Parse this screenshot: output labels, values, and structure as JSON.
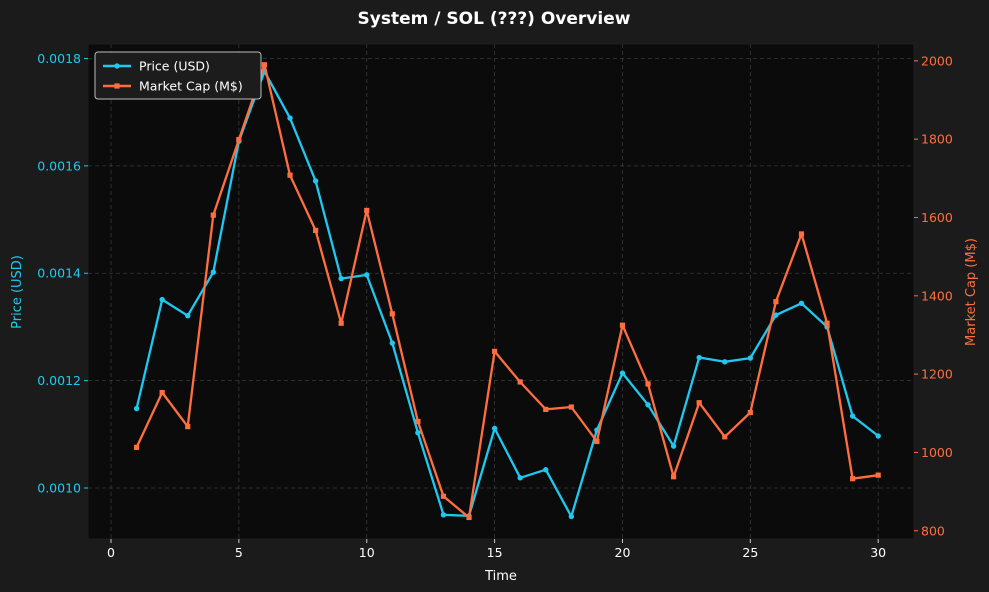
{
  "chart_data": {
    "type": "line",
    "title": "System / SOL (???) Overview",
    "xlabel": "Time",
    "ylabel_left": "Price (USD)",
    "ylabel_right": "Market Cap (M$)",
    "xlim": [
      -0.9,
      31.4
    ],
    "ylim_left": [
      0.000905,
      0.001827
    ],
    "ylim_right": [
      779,
      2043
    ],
    "x_ticks": [
      0,
      5,
      10,
      15,
      20,
      25,
      30
    ],
    "y_ticks_left": [
      "0.0010",
      "0.0012",
      "0.0014",
      "0.0016",
      "0.0018"
    ],
    "y_ticks_right": [
      "800",
      "1000",
      "1200",
      "1400",
      "1600",
      "1800",
      "2000"
    ],
    "grid": true,
    "legend_position": "top-left",
    "x": [
      1,
      2,
      3,
      4,
      5,
      6,
      7,
      8,
      9,
      10,
      11,
      12,
      13,
      14,
      15,
      16,
      17,
      18,
      19,
      20,
      21,
      22,
      23,
      24,
      25,
      26,
      27,
      28,
      29,
      30
    ],
    "series": [
      {
        "name": "Price (USD)",
        "axis": "left",
        "color": "#1fc8f0",
        "marker": "circle",
        "values": [
          0.001148,
          0.001351,
          0.001321,
          0.001402,
          0.001646,
          0.001776,
          0.001689,
          0.001572,
          0.00139,
          0.001397,
          0.00127,
          0.001103,
          0.00095,
          0.000948,
          0.001111,
          0.001019,
          0.001034,
          0.000947,
          0.001108,
          0.001214,
          0.001155,
          0.001078,
          0.001243,
          0.001235,
          0.001242,
          0.001322,
          0.001344,
          0.0013,
          0.001134,
          0.001097
        ]
      },
      {
        "name": "Market Cap (M$)",
        "axis": "right",
        "color": "#ff6e3f",
        "marker": "square",
        "values": [
          1013,
          1153,
          1066,
          1606,
          1799,
          1990,
          1708,
          1567,
          1330,
          1618,
          1354,
          1079,
          888,
          834,
          1258,
          1180,
          1110,
          1116,
          1028,
          1325,
          1175,
          938,
          1127,
          1040,
          1102,
          1385,
          1558,
          1330,
          933,
          942
        ]
      }
    ]
  }
}
